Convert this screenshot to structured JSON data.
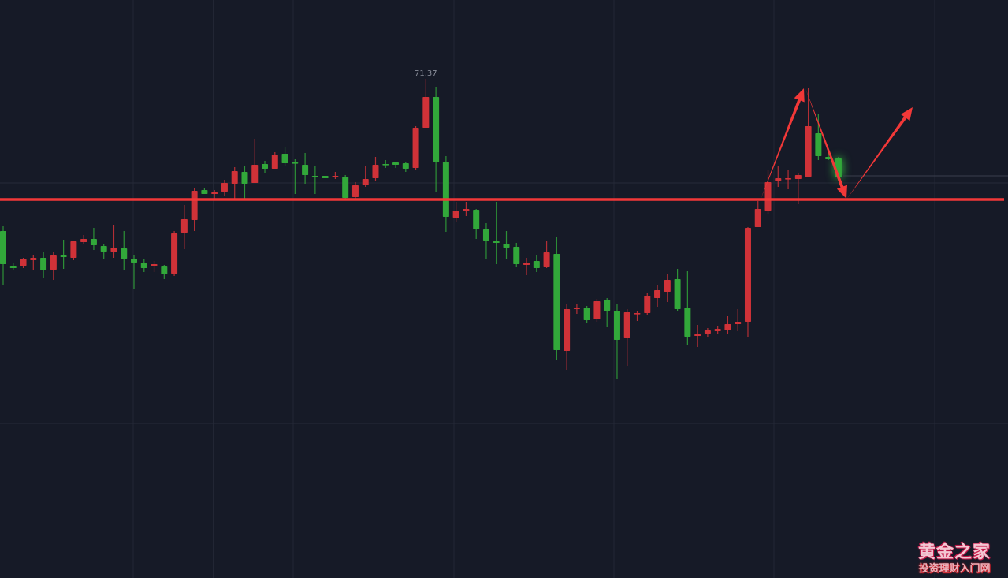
{
  "chart_data": {
    "type": "candlestick",
    "title": "",
    "xlabel": "",
    "ylabel": "",
    "ylim": [
      65.0,
      72.37
    ],
    "grid": true,
    "up_color": "#d03238",
    "down_color": "#32a83a",
    "max_label": "71.37",
    "support_level": 69.84,
    "support_color": "#f23838",
    "ohlc": [
      [
        69.44,
        69.5,
        68.75,
        69.02
      ],
      [
        69.0,
        69.03,
        68.95,
        68.97
      ],
      [
        69.0,
        69.1,
        68.97,
        69.09
      ],
      [
        69.07,
        69.13,
        68.94,
        69.1
      ],
      [
        69.1,
        69.18,
        68.85,
        68.94
      ],
      [
        68.95,
        69.17,
        68.82,
        69.13
      ],
      [
        69.13,
        69.33,
        68.96,
        69.11
      ],
      [
        69.1,
        69.32,
        69.07,
        69.31
      ],
      [
        69.3,
        69.39,
        69.27,
        69.34
      ],
      [
        69.34,
        69.48,
        69.2,
        69.26
      ],
      [
        69.25,
        69.27,
        69.08,
        69.18
      ],
      [
        69.18,
        69.52,
        69.1,
        69.23
      ],
      [
        69.22,
        69.44,
        68.94,
        69.09
      ],
      [
        69.09,
        69.13,
        68.7,
        69.04
      ],
      [
        69.04,
        69.09,
        68.92,
        68.97
      ],
      [
        69.0,
        69.06,
        68.92,
        69.02
      ],
      [
        69.0,
        69.01,
        68.83,
        68.89
      ],
      [
        68.9,
        69.44,
        68.87,
        69.41
      ],
      [
        69.42,
        69.77,
        69.21,
        69.59
      ],
      [
        69.58,
        69.98,
        69.44,
        69.95
      ],
      [
        69.96,
        69.99,
        69.91,
        69.91
      ],
      [
        69.91,
        69.96,
        69.84,
        69.93
      ],
      [
        69.94,
        70.09,
        69.88,
        70.05
      ],
      [
        70.04,
        70.25,
        69.84,
        70.2
      ],
      [
        70.19,
        70.26,
        69.84,
        70.04
      ],
      [
        70.05,
        70.61,
        70.05,
        70.28
      ],
      [
        70.29,
        70.33,
        70.18,
        70.23
      ],
      [
        70.23,
        70.44,
        70.23,
        70.41
      ],
      [
        70.42,
        70.5,
        70.26,
        70.3
      ],
      [
        70.31,
        70.35,
        69.91,
        70.3
      ],
      [
        70.28,
        70.43,
        70.04,
        70.15
      ],
      [
        70.14,
        70.26,
        69.91,
        70.13
      ],
      [
        70.14,
        70.14,
        70.11,
        70.11
      ],
      [
        70.12,
        70.19,
        70.1,
        70.14
      ],
      [
        70.13,
        70.15,
        69.85,
        69.86
      ],
      [
        69.87,
        70.06,
        69.85,
        70.02
      ],
      [
        70.02,
        70.27,
        70.0,
        70.1
      ],
      [
        70.11,
        70.38,
        70.07,
        70.28
      ],
      [
        70.29,
        70.34,
        70.24,
        70.28
      ],
      [
        70.31,
        70.32,
        70.24,
        70.28
      ],
      [
        70.3,
        70.32,
        70.19,
        70.23
      ],
      [
        70.24,
        70.77,
        70.22,
        70.75
      ],
      [
        70.75,
        71.37,
        70.75,
        71.14
      ],
      [
        71.14,
        71.27,
        69.94,
        70.31
      ],
      [
        70.32,
        70.39,
        69.43,
        69.62
      ],
      [
        69.61,
        69.81,
        69.55,
        69.7
      ],
      [
        69.69,
        69.81,
        69.63,
        69.72
      ],
      [
        69.71,
        69.72,
        69.34,
        69.46
      ],
      [
        69.46,
        69.54,
        69.09,
        69.32
      ],
      [
        69.31,
        69.81,
        69.02,
        69.29
      ],
      [
        69.28,
        69.44,
        69.09,
        69.23
      ],
      [
        69.24,
        69.29,
        68.99,
        69.02
      ],
      [
        69.01,
        69.1,
        68.88,
        69.04
      ],
      [
        69.06,
        69.13,
        68.92,
        68.97
      ],
      [
        68.99,
        69.31,
        68.97,
        69.17
      ],
      [
        69.15,
        69.37,
        67.8,
        67.93
      ],
      [
        67.92,
        68.52,
        67.68,
        68.45
      ],
      [
        68.45,
        68.52,
        68.39,
        68.47
      ],
      [
        68.47,
        68.49,
        68.27,
        68.31
      ],
      [
        68.32,
        68.58,
        68.29,
        68.55
      ],
      [
        68.57,
        68.59,
        68.22,
        68.43
      ],
      [
        68.43,
        68.51,
        67.56,
        68.06
      ],
      [
        68.08,
        68.45,
        67.73,
        68.41
      ],
      [
        68.39,
        68.43,
        68.3,
        68.4
      ],
      [
        68.4,
        68.66,
        68.37,
        68.62
      ],
      [
        68.59,
        68.75,
        68.48,
        68.69
      ],
      [
        68.67,
        68.9,
        68.54,
        68.82
      ],
      [
        68.83,
        68.96,
        68.42,
        68.45
      ],
      [
        68.47,
        68.93,
        68.0,
        68.1
      ],
      [
        68.11,
        68.25,
        67.97,
        68.13
      ],
      [
        68.14,
        68.21,
        68.1,
        68.18
      ],
      [
        68.17,
        68.23,
        68.14,
        68.2
      ],
      [
        68.18,
        68.36,
        68.14,
        68.26
      ],
      [
        68.26,
        68.45,
        68.17,
        68.29
      ],
      [
        68.29,
        69.49,
        68.09,
        69.48
      ],
      [
        69.49,
        69.82,
        69.49,
        69.72
      ],
      [
        69.7,
        70.21,
        69.65,
        70.06
      ],
      [
        70.07,
        70.26,
        70.0,
        70.11
      ],
      [
        70.1,
        70.21,
        69.97,
        70.11
      ],
      [
        70.1,
        70.17,
        69.78,
        70.15
      ],
      [
        70.13,
        71.25,
        70.12,
        70.77
      ],
      [
        70.68,
        70.92,
        70.34,
        70.39
      ],
      [
        70.38,
        70.48,
        70.34,
        70.35
      ],
      [
        70.36,
        70.38,
        70.11,
        70.12
      ]
    ]
  },
  "watermark": {
    "title": "黄金之家",
    "subtitle": "投资理财入门网"
  }
}
